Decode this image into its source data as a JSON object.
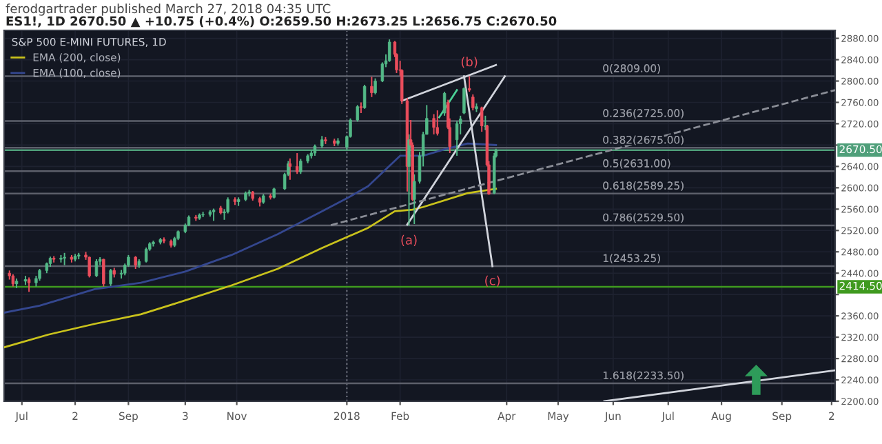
{
  "chart_data": {
    "type": "candlestick",
    "title": "ferodgartrader published March 27, 2018 04:35 UTC",
    "subtitle": "ES1!, 1D 2670.50 ▲ +10.75 (+0.4%) O:2659.50 H:2673.25 L:2656.75 C:2670.50",
    "legend_title": "S&P 500 E-MINI FUTURES, 1D",
    "legend": "top left",
    "grid": true,
    "xlim": [
      "2017-06-23",
      "2018-10-04"
    ],
    "xticks": [
      {
        "value": "2017-07-03",
        "label": "Jul"
      },
      {
        "value": "2017-08-02",
        "label": "2"
      },
      {
        "value": "2017-09-01",
        "label": "Sep"
      },
      {
        "value": "2017-10-03",
        "label": "3"
      },
      {
        "value": "2017-11-01",
        "label": "Nov"
      },
      {
        "value": "2018-01-02",
        "label": "2018"
      },
      {
        "value": "2018-02-01",
        "label": "Feb"
      },
      {
        "value": "2018-04-02",
        "label": "Apr"
      },
      {
        "value": "2018-05-01",
        "label": "May"
      },
      {
        "value": "2018-06-01",
        "label": "Jun"
      },
      {
        "value": "2018-07-02",
        "label": "Jul"
      },
      {
        "value": "2018-08-01",
        "label": "Aug"
      },
      {
        "value": "2018-09-04",
        "label": "Sep"
      },
      {
        "value": "2018-10-02",
        "label": "2"
      }
    ],
    "ylim": [
      2200,
      2895
    ],
    "yticks": [
      {
        "value": 2200,
        "label": "2200.00"
      },
      {
        "value": 2240,
        "label": "2240.00"
      },
      {
        "value": 2280,
        "label": "2280.00"
      },
      {
        "value": 2320,
        "label": "2320.00"
      },
      {
        "value": 2360,
        "label": "2360.00"
      },
      {
        "value": 2400,
        "label": null
      },
      {
        "value": 2440,
        "label": "2440.00"
      },
      {
        "value": 2480,
        "label": "2480.00"
      },
      {
        "value": 2520,
        "label": "2520.00"
      },
      {
        "value": 2560,
        "label": "2560.00"
      },
      {
        "value": 2600,
        "label": "2600.00"
      },
      {
        "value": 2640,
        "label": "2640.00"
      },
      {
        "value": 2680,
        "label": null
      },
      {
        "value": 2720,
        "label": "2720.00"
      },
      {
        "value": 2760,
        "label": "2760.00"
      },
      {
        "value": 2800,
        "label": "2800.00"
      },
      {
        "value": 2840,
        "label": "2840.00"
      },
      {
        "value": 2880,
        "label": "2880.00"
      }
    ],
    "series": [
      {
        "colors": [
          "#eb4d5c",
          "#eb4d5c",
          "#53b987",
          "#53b987",
          "#eb4d5c",
          "#53b987",
          "#53b987",
          "#53b987",
          "#53b987",
          "#eb4d5c",
          "#53b987",
          "#53b987",
          "#eb4d5c",
          "#53b987",
          "#53b987",
          "#eb4d5c",
          "#eb4d5c",
          "#53b987",
          "#53b987",
          "#eb4d5c",
          "#53b987",
          "#eb4d5c",
          "#53b987",
          "#53b987",
          "#53b987",
          "#eb4d5c",
          "#53b987",
          "#53b987",
          "#53b987",
          "#53b987",
          "#53b987",
          "#eb4d5c",
          "#eb4d5c",
          "#53b987",
          "#53b987",
          "#53b987",
          "#53b987",
          "#eb4d5c",
          "#53b987",
          "#53b987",
          "#53b987",
          "#53b987",
          "#eb4d5c",
          "#53b987",
          "#53b987",
          "#eb4d5c",
          "#53b987",
          "#53b987",
          "#53b987",
          "#eb4d5c",
          "#eb4d5c",
          "#53b987",
          "#eb4d5c",
          "#53b987",
          "#53b987",
          "#53b987",
          "#eb4d5c",
          "#eb4d5c",
          "#53b987",
          "#53b987",
          "#53b987",
          "#53b987",
          "#53b987",
          "#eb4d5c",
          "#eb4d5c",
          "#53b987",
          "#53b987",
          "#53b987",
          "#53b987",
          "#eb4d5c",
          "#53b987",
          "#eb4d5c",
          "#53b987",
          "#53b987",
          "#53b987",
          "#53b987",
          "#eb4d5c",
          "#eb4d5c",
          "#eb4d5c",
          "#eb4d5c",
          "#eb4d5c",
          "#53b987",
          "#eb4d5c",
          "#eb4d5c",
          "#53b987",
          "#53b987",
          "#53b987",
          "#53b987",
          "#eb4d5c",
          "#eb4d5c",
          "#53b987",
          "#eb4d5c",
          "#eb4d5c",
          "#53b987",
          "#53b987",
          "#53b987",
          "#eb4d5c",
          "#eb4d5c",
          "#53b987",
          "#eb4d5c",
          "#53b987",
          "#eb4d5c",
          "#eb4d5c",
          "#53b987",
          "#53b987"
        ],
        "x": [
          "2017-06-26",
          "2017-06-28",
          "2017-06-30",
          "2017-07-05",
          "2017-07-07",
          "2017-07-11",
          "2017-07-13",
          "2017-07-17",
          "2017-07-19",
          "2017-07-21",
          "2017-07-25",
          "2017-07-27",
          "2017-07-31",
          "2017-08-02",
          "2017-08-04",
          "2017-08-08",
          "2017-08-10",
          "2017-08-14",
          "2017-08-16",
          "2017-08-18",
          "2017-08-22",
          "2017-08-24",
          "2017-08-28",
          "2017-08-30",
          "2017-09-01",
          "2017-09-05",
          "2017-09-07",
          "2017-09-11",
          "2017-09-13",
          "2017-09-15",
          "2017-09-19",
          "2017-09-21",
          "2017-09-25",
          "2017-09-27",
          "2017-09-29",
          "2017-10-03",
          "2017-10-05",
          "2017-10-09",
          "2017-10-11",
          "2017-10-13",
          "2017-10-17",
          "2017-10-19",
          "2017-10-23",
          "2017-10-25",
          "2017-10-27",
          "2017-10-31",
          "2017-11-02",
          "2017-11-06",
          "2017-11-08",
          "2017-11-10",
          "2017-11-14",
          "2017-11-16",
          "2017-11-20",
          "2017-11-22",
          "2017-11-28",
          "2017-11-30",
          "2017-12-01",
          "2017-12-05",
          "2017-12-07",
          "2017-12-11",
          "2017-12-13",
          "2017-12-15",
          "2017-12-19",
          "2017-12-21",
          "2017-12-26",
          "2017-12-28",
          "2018-01-02",
          "2018-01-04",
          "2018-01-08",
          "2018-01-10",
          "2018-01-12",
          "2018-01-16",
          "2018-01-18",
          "2018-01-22",
          "2018-01-24",
          "2018-01-26",
          "2018-01-29",
          "2018-01-30",
          "2018-02-01",
          "2018-02-02",
          "2018-02-05",
          "2018-02-06",
          "2018-02-07",
          "2018-02-08",
          "2018-02-09",
          "2018-02-12",
          "2018-02-14",
          "2018-02-16",
          "2018-02-20",
          "2018-02-22",
          "2018-02-26",
          "2018-02-28",
          "2018-03-01",
          "2018-03-05",
          "2018-03-07",
          "2018-03-09",
          "2018-03-12",
          "2018-03-14",
          "2018-03-16",
          "2018-03-19",
          "2018-03-21",
          "2018-03-22",
          "2018-03-23",
          "2018-03-26",
          "2018-03-27"
        ],
        "ohlc": [
          [
            2440,
            2445,
            2428,
            2435
          ],
          [
            2435,
            2438,
            2415,
            2420
          ],
          [
            2420,
            2430,
            2412,
            2425
          ],
          [
            2425,
            2435,
            2418,
            2428
          ],
          [
            2428,
            2432,
            2405,
            2422
          ],
          [
            2422,
            2435,
            2415,
            2430
          ],
          [
            2430,
            2448,
            2426,
            2445
          ],
          [
            2445,
            2460,
            2440,
            2458
          ],
          [
            2458,
            2471,
            2452,
            2468
          ],
          [
            2468,
            2472,
            2460,
            2466
          ],
          [
            2466,
            2474,
            2460,
            2468
          ],
          [
            2468,
            2478,
            2455,
            2470
          ],
          [
            2470,
            2474,
            2460,
            2466
          ],
          [
            2466,
            2476,
            2462,
            2472
          ],
          [
            2472,
            2478,
            2466,
            2474
          ],
          [
            2474,
            2480,
            2465,
            2470
          ],
          [
            2470,
            2471,
            2432,
            2435
          ],
          [
            2435,
            2466,
            2433,
            2462
          ],
          [
            2462,
            2470,
            2455,
            2466
          ],
          [
            2466,
            2467,
            2415,
            2420
          ],
          [
            2420,
            2448,
            2416,
            2445
          ],
          [
            2445,
            2450,
            2432,
            2438
          ],
          [
            2438,
            2446,
            2430,
            2440
          ],
          [
            2440,
            2458,
            2436,
            2455
          ],
          [
            2455,
            2474,
            2452,
            2470
          ],
          [
            2470,
            2472,
            2448,
            2455
          ],
          [
            2455,
            2466,
            2450,
            2462
          ],
          [
            2462,
            2488,
            2460,
            2485
          ],
          [
            2485,
            2498,
            2482,
            2495
          ],
          [
            2495,
            2501,
            2490,
            2498
          ],
          [
            2498,
            2506,
            2494,
            2503
          ],
          [
            2503,
            2507,
            2496,
            2500
          ],
          [
            2500,
            2503,
            2488,
            2492
          ],
          [
            2492,
            2508,
            2489,
            2505
          ],
          [
            2505,
            2520,
            2502,
            2518
          ],
          [
            2518,
            2533,
            2515,
            2530
          ],
          [
            2530,
            2548,
            2528,
            2545
          ],
          [
            2545,
            2549,
            2538,
            2543
          ],
          [
            2543,
            2552,
            2540,
            2549
          ],
          [
            2549,
            2555,
            2545,
            2550
          ],
          [
            2550,
            2558,
            2546,
            2555
          ],
          [
            2555,
            2561,
            2538,
            2558
          ],
          [
            2562,
            2566,
            2550,
            2553
          ],
          [
            2553,
            2560,
            2540,
            2555
          ],
          [
            2555,
            2582,
            2552,
            2578
          ],
          [
            2578,
            2582,
            2568,
            2574
          ],
          [
            2574,
            2582,
            2566,
            2578
          ],
          [
            2578,
            2593,
            2575,
            2590
          ],
          [
            2590,
            2596,
            2584,
            2592
          ],
          [
            2592,
            2594,
            2576,
            2580
          ],
          [
            2580,
            2583,
            2565,
            2573
          ],
          [
            2573,
            2588,
            2570,
            2585
          ],
          [
            2585,
            2589,
            2578,
            2582
          ],
          [
            2582,
            2600,
            2580,
            2598
          ],
          [
            2598,
            2628,
            2596,
            2625
          ],
          [
            2625,
            2650,
            2622,
            2645
          ],
          [
            2645,
            2655,
            2615,
            2640
          ],
          [
            2640,
            2665,
            2626,
            2630
          ],
          [
            2630,
            2654,
            2626,
            2650
          ],
          [
            2650,
            2663,
            2646,
            2660
          ],
          [
            2660,
            2670,
            2655,
            2665
          ],
          [
            2665,
            2681,
            2660,
            2678
          ],
          [
            2678,
            2697,
            2674,
            2690
          ],
          [
            2690,
            2695,
            2682,
            2688
          ],
          [
            2688,
            2692,
            2678,
            2683
          ],
          [
            2683,
            2693,
            2679,
            2688
          ],
          [
            2676,
            2698,
            2672,
            2696
          ],
          [
            2696,
            2730,
            2694,
            2727
          ],
          [
            2727,
            2755,
            2724,
            2752
          ],
          [
            2752,
            2760,
            2740,
            2750
          ],
          [
            2750,
            2793,
            2748,
            2790
          ],
          [
            2790,
            2808,
            2770,
            2778
          ],
          [
            2778,
            2805,
            2775,
            2800
          ],
          [
            2800,
            2835,
            2798,
            2832
          ],
          [
            2832,
            2850,
            2826,
            2838
          ],
          [
            2838,
            2878,
            2836,
            2873
          ],
          [
            2873,
            2875,
            2845,
            2850
          ],
          [
            2850,
            2852,
            2815,
            2821
          ],
          [
            2821,
            2838,
            2810,
            2820
          ],
          [
            2820,
            2822,
            2757,
            2763
          ],
          [
            2763,
            2768,
            2593,
            2640
          ],
          [
            2640,
            2700,
            2529,
            2690
          ],
          [
            2690,
            2727,
            2675,
            2680
          ],
          [
            2680,
            2685,
            2575,
            2578
          ],
          [
            2578,
            2625,
            2532,
            2612
          ],
          [
            2612,
            2667,
            2608,
            2660
          ],
          [
            2660,
            2705,
            2640,
            2700
          ],
          [
            2700,
            2755,
            2700,
            2730
          ],
          [
            2730,
            2738,
            2700,
            2713
          ],
          [
            2713,
            2745,
            2698,
            2702
          ],
          [
            2740,
            2780,
            2735,
            2777
          ],
          [
            2760,
            2765,
            2710,
            2713
          ],
          [
            2713,
            2730,
            2665,
            2677
          ],
          [
            2690,
            2725,
            2660,
            2720
          ],
          [
            2720,
            2735,
            2700,
            2729
          ],
          [
            2740,
            2788,
            2738,
            2786
          ],
          [
            2786,
            2809,
            2780,
            2783
          ],
          [
            2770,
            2775,
            2745,
            2750
          ],
          [
            2748,
            2758,
            2742,
            2752
          ],
          [
            2750,
            2752,
            2705,
            2716
          ],
          [
            2715,
            2735,
            2708,
            2716
          ],
          [
            2716,
            2718,
            2640,
            2643
          ],
          [
            2643,
            2650,
            2587,
            2588
          ],
          [
            2590,
            2665,
            2588,
            2659.75
          ],
          [
            2659.5,
            2673.25,
            2656.75,
            2670.5
          ]
        ]
      },
      {
        "type": "line",
        "name": "EMA (200, close)",
        "color": "#c9c21c",
        "x": [
          "2017-06-23",
          "2017-07-18",
          "2017-08-13",
          "2017-09-08",
          "2017-10-03",
          "2017-10-29",
          "2017-11-24",
          "2017-12-19",
          "2018-01-14",
          "2018-01-29",
          "2018-02-08",
          "2018-02-14",
          "2018-03-11",
          "2018-03-27"
        ],
        "values": [
          2301,
          2325,
          2345,
          2363,
          2389,
          2417,
          2448,
          2487,
          2525,
          2556,
          2559,
          2564,
          2590,
          2598
        ]
      },
      {
        "type": "line",
        "name": "EMA (100, close)",
        "color": "#34478f",
        "x": [
          "2017-06-23",
          "2017-07-13",
          "2017-08-13",
          "2017-09-08",
          "2017-10-03",
          "2017-10-29",
          "2017-11-24",
          "2017-12-19",
          "2018-01-03",
          "2018-01-14",
          "2018-02-01",
          "2018-02-14",
          "2018-02-26",
          "2018-03-11",
          "2018-03-27"
        ],
        "values": [
          2366,
          2379,
          2410,
          2422,
          2443,
          2474,
          2513,
          2556,
          2582,
          2603,
          2660,
          2660,
          2672,
          2683,
          2680
        ]
      },
      {
        "type": "line",
        "color": "#d1d4dc",
        "x": [
          "2018-02-02",
          "2018-03-27"
        ],
        "values": [
          2763,
          2830
        ]
      },
      {
        "type": "line",
        "color": "#d1d4dc",
        "x": [
          "2018-02-05",
          "2018-04-01"
        ],
        "values": [
          2531,
          2809
        ]
      },
      {
        "type": "line",
        "color": "#d1d4dc",
        "x": [
          "2018-03-09",
          "2018-03-25"
        ],
        "values": [
          2809,
          2453
        ]
      },
      {
        "type": "line",
        "color": "#8a8d96",
        "line_style": "dashed",
        "x": [
          "2017-12-24",
          "2018-10-04"
        ],
        "values": [
          2530,
          2783
        ]
      },
      {
        "type": "line",
        "color": "#d1d4dc",
        "x": [
          "2018-05-27",
          "2018-10-04"
        ],
        "values": [
          2200,
          2258
        ]
      },
      {
        "type": "line",
        "color": "#4bd197",
        "x": [
          "2018-02-23",
          "2018-03-05"
        ],
        "values": [
          2732,
          2783
        ]
      }
    ],
    "ref_lines": [
      {
        "axis": "x",
        "value": "2018-01-02",
        "line_style": "dotted",
        "color": "#6a6d78"
      },
      {
        "axis": "y",
        "value": 2809,
        "label": "0(2809.00)",
        "color": "#5d606b"
      },
      {
        "axis": "y",
        "value": 2725,
        "label": "0.236(2725.00)",
        "color": "#5d606b"
      },
      {
        "axis": "y",
        "value": 2675,
        "label": "0.382(2675.00)",
        "color": "#5d606b"
      },
      {
        "axis": "y",
        "value": 2631,
        "label": "0.5(2631.00)",
        "color": "#5d606b"
      },
      {
        "axis": "y",
        "value": 2589.25,
        "label": "0.618(2589.25)",
        "color": "#5d606b"
      },
      {
        "axis": "y",
        "value": 2529.5,
        "label": "0.786(2529.50)",
        "color": "#5d606b"
      },
      {
        "axis": "y",
        "value": 2453.25,
        "label": "1(2453.25)",
        "color": "#5d606b"
      },
      {
        "axis": "y",
        "value": 2233.5,
        "label": "1.618(2233.50)",
        "color": "#5d606b"
      },
      {
        "axis": "y",
        "value": 2670.5,
        "label": "2670.50",
        "color": "#4f9f7a"
      },
      {
        "axis": "y",
        "value": 2414.5,
        "label": "2414.50",
        "color": "#3f9a1f"
      }
    ],
    "annotations": [
      {
        "text": "(a)",
        "x": "2018-02-06",
        "y": 2529
      },
      {
        "text": "(b)",
        "x": "2018-03-12",
        "y": 2809
      },
      {
        "text": "(c)",
        "x": "2018-03-25",
        "y": 2453
      }
    ]
  }
}
